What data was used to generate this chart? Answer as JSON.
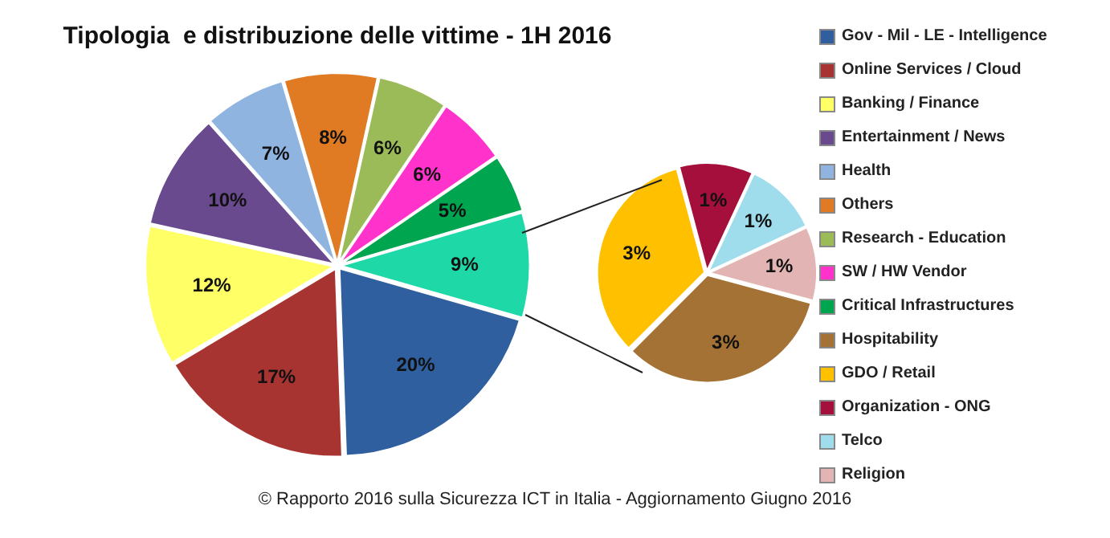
{
  "chart_data": [
    {
      "type": "pie",
      "title": "Tipologia  e distribuzione delle vittime - 1H 2016",
      "categories": [
        "Gov - Mil - LE - Intelligence",
        "Online Services / Cloud",
        "Banking / Finance",
        "Entertainment / News",
        "Health",
        "Others",
        "Research - Education",
        "SW / HW Vendor",
        "Critical Infrastructures",
        null
      ],
      "values": [
        20,
        17,
        12,
        10,
        7,
        8,
        6,
        6,
        5,
        9
      ],
      "value_labels": [
        "20%",
        "17%",
        "12%",
        "10%",
        "7%",
        "8%",
        "6%",
        "6%",
        "5%",
        "9%"
      ],
      "colors": [
        "#2f5f9e",
        "#a83432",
        "#ffff66",
        "#6a4a8e",
        "#8fb4e0",
        "#e07b24",
        "#9bbb59",
        "#ff33cc",
        "#00a550",
        "#1fd8a8"
      ],
      "legend": "right",
      "annotations": [
        "© Rapporto 2016 sulla Sicurezza ICT in Italia - Aggiornamento Giugno 2016"
      ]
    },
    {
      "type": "pie",
      "categories": [
        "Hospitability",
        "GDO / Retail",
        "Organization - ONG",
        "Telco",
        "Religion"
      ],
      "values": [
        3,
        3,
        1,
        1,
        1
      ],
      "value_labels": [
        "3%",
        "3%",
        "1%",
        "1%",
        "1%"
      ],
      "colors": [
        "#a57236",
        "#ffc000",
        "#a50f3c",
        "#9fdcec",
        "#e2b4b4"
      ],
      "legend": "right"
    }
  ]
}
